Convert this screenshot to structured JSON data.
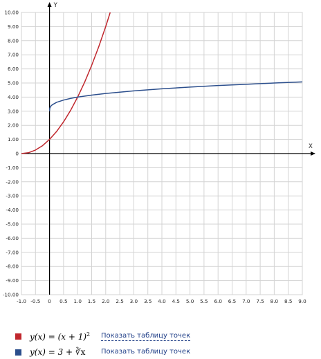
{
  "chart_data": {
    "type": "line",
    "xlabel": "X",
    "ylabel": "Y",
    "xlim": [
      -1.0,
      9.0
    ],
    "ylim": [
      -10.0,
      10.0
    ],
    "grid": true,
    "x_ticks": [
      "-1.0",
      "-0.5",
      "0",
      "0.5",
      "1.0",
      "1.5",
      "2.0",
      "2.5",
      "3.0",
      "3.5",
      "4.0",
      "4.5",
      "5.0",
      "5.5",
      "6.0",
      "6.5",
      "7.0",
      "7.5",
      "8.0",
      "8.5",
      "9.0"
    ],
    "y_ticks": [
      "10.00",
      "9.00",
      "8.00",
      "7.00",
      "6.00",
      "5.00",
      "4.00",
      "3.00",
      "2.00",
      "1.00",
      "0",
      "-1.00",
      "-2.00",
      "-3.00",
      "-4.00",
      "-5.00",
      "-6.00",
      "-7.00",
      "-8.00",
      "-9.00",
      "-10.00"
    ],
    "series": [
      {
        "color": "#c0272d",
        "x": [
          -1.0,
          -0.75,
          -0.5,
          -0.25,
          0,
          0.25,
          0.5,
          0.75,
          1.0,
          1.25,
          1.5,
          1.75,
          2.0,
          2.16
        ],
        "y": [
          0,
          0.06,
          0.25,
          0.56,
          1.0,
          1.56,
          2.25,
          3.06,
          4.0,
          5.06,
          6.25,
          7.56,
          9.0,
          10.0
        ]
      },
      {
        "color": "#2b4e8c",
        "x": [
          0,
          0.01,
          0.05,
          0.1,
          0.25,
          0.5,
          0.75,
          1.0,
          1.5,
          2.0,
          3.0,
          4.0,
          5.0,
          6.0,
          7.0,
          8.0,
          9.0
        ],
        "y": [
          3.0,
          3.22,
          3.37,
          3.46,
          3.63,
          3.79,
          3.91,
          4.0,
          4.14,
          4.26,
          4.44,
          4.59,
          4.71,
          4.82,
          4.91,
          5.0,
          5.08
        ]
      }
    ]
  },
  "legend": [
    {
      "color": "#c0272d",
      "formula_prefix": "y(x) = (x + 1)",
      "formula_sup": "2",
      "link": "Показать таблицу точек"
    },
    {
      "color": "#2b4e8c",
      "formula_prefix": "y(x) = 3 + ",
      "formula_root": "∛x",
      "link": "Показать таблицу точек"
    }
  ]
}
